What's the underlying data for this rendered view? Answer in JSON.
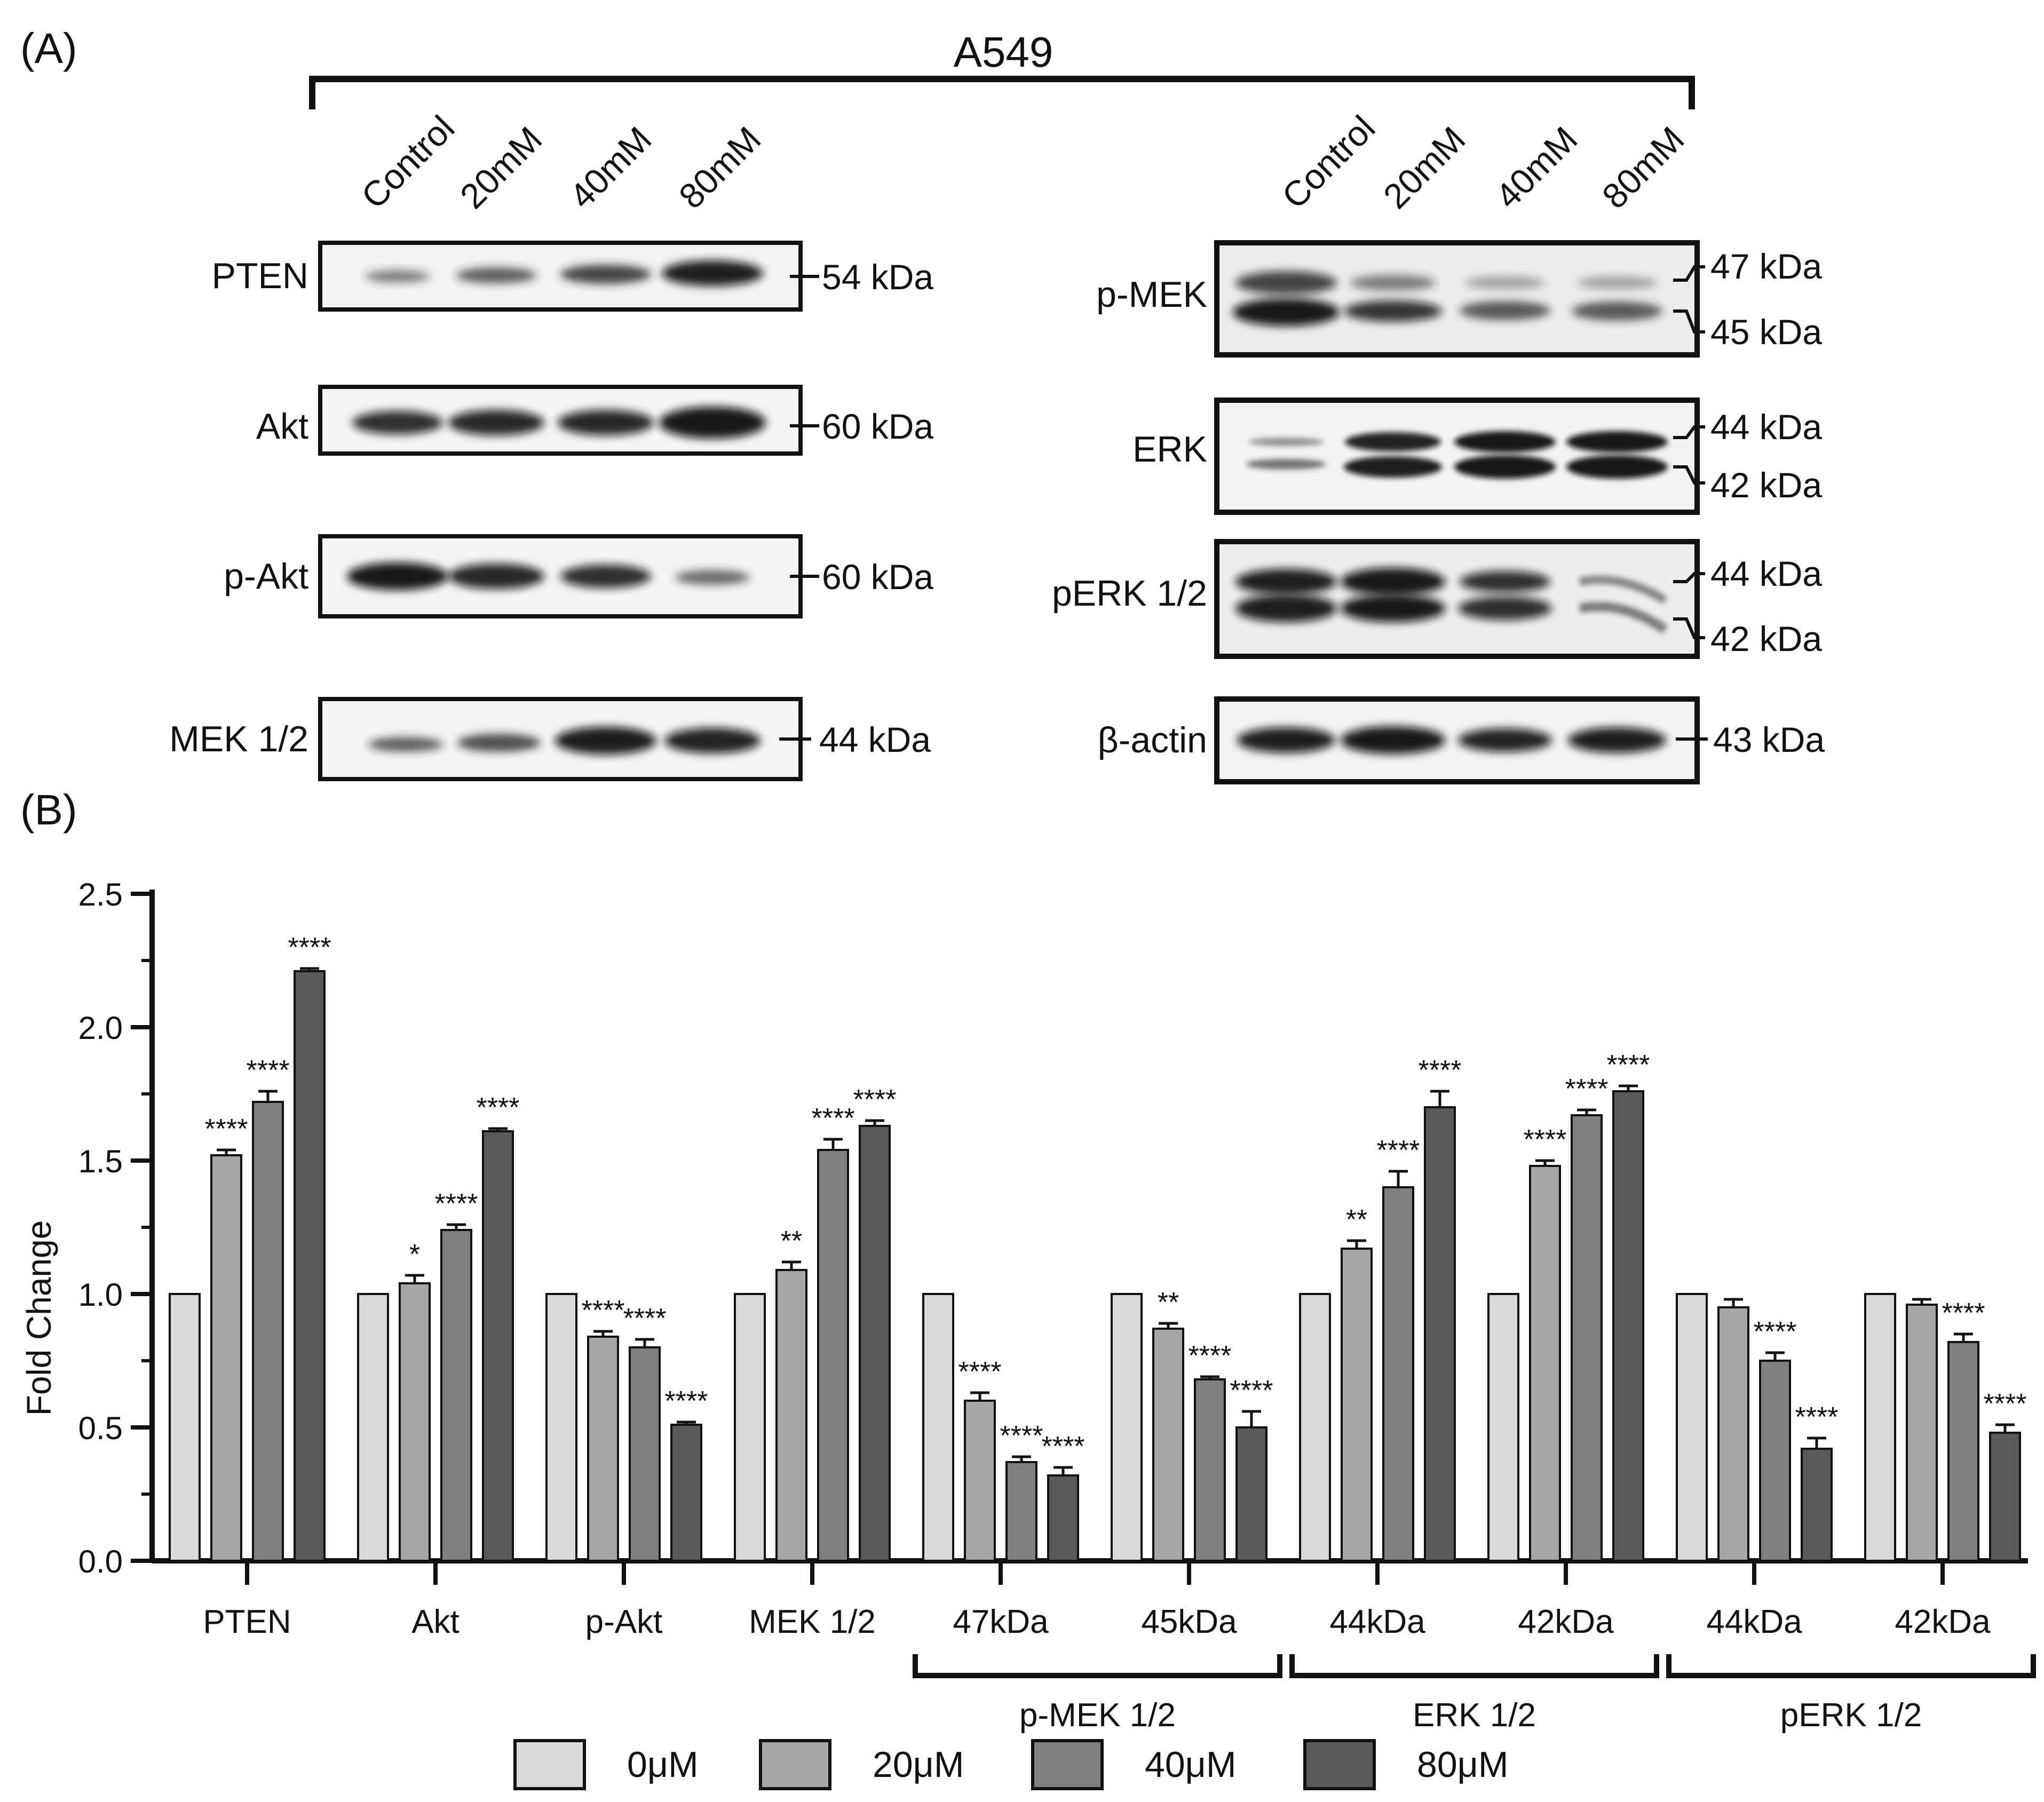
{
  "panel_a": {
    "label": "(A)",
    "cell_line": "A549",
    "lanes": [
      "Control",
      "20mM",
      "40mM",
      "80mM"
    ],
    "left_blots": [
      {
        "name": "PTEN",
        "kda": [
          "54 kDa"
        ],
        "intensity": [
          0.3,
          0.45,
          0.6,
          0.85
        ]
      },
      {
        "name": "Akt",
        "kda": [
          "60 kDa"
        ],
        "intensity": [
          0.75,
          0.8,
          0.8,
          0.95
        ]
      },
      {
        "name": "p-Akt",
        "kda": [
          "60 kDa"
        ],
        "intensity": [
          0.9,
          0.8,
          0.75,
          0.45
        ]
      },
      {
        "name": "MEK 1/2",
        "kda": [
          "44 kDa"
        ],
        "intensity": [
          0.55,
          0.65,
          0.9,
          0.85
        ]
      }
    ],
    "right_blots": [
      {
        "name": "p-MEK",
        "kda": [
          "47 kDa",
          "45 kDa"
        ],
        "bands": 2
      },
      {
        "name": "ERK",
        "kda": [
          "44 kDa",
          "42 kDa"
        ],
        "bands": 2
      },
      {
        "name": "pERK 1/2",
        "kda": [
          "44 kDa",
          "42 kDa"
        ],
        "bands": 2
      },
      {
        "name": "β-actin",
        "kda": [
          "43 kDa"
        ],
        "bands": 1
      }
    ]
  },
  "panel_b": {
    "label": "(B)"
  },
  "chart_data": {
    "type": "bar",
    "ylabel": "Fold Change",
    "ylim": [
      0,
      2.5
    ],
    "yticks": [
      "0.0",
      "0.5",
      "1.0",
      "1.5",
      "2.0",
      "2.5"
    ],
    "categories": [
      "PTEN",
      "Akt",
      "p-Akt",
      "MEK 1/2",
      "47kDa",
      "45kDa",
      "44kDa",
      "42kDa",
      "44kDa",
      "42kDa"
    ],
    "groups": [
      {
        "label": "p-MEK 1/2",
        "from": 4,
        "to": 5
      },
      {
        "label": "ERK 1/2",
        "from": 6,
        "to": 7
      },
      {
        "label": "pERK 1/2",
        "from": 8,
        "to": 9
      }
    ],
    "series": [
      {
        "name": "0μM",
        "color": "#d9d9d9",
        "values": [
          1,
          1,
          1,
          1,
          1,
          1,
          1,
          1,
          1,
          1
        ],
        "errors": [
          0,
          0,
          0,
          0,
          0,
          0,
          0,
          0,
          0,
          0
        ],
        "sig": [
          "",
          "",
          "",
          "",
          "",
          "",
          "",
          "",
          "",
          ""
        ]
      },
      {
        "name": "20μM",
        "color": "#a6a6a6",
        "values": [
          1.52,
          1.04,
          0.84,
          1.09,
          0.6,
          0.87,
          1.17,
          1.48,
          0.95,
          0.96
        ],
        "errors": [
          0.02,
          0.03,
          0.02,
          0.03,
          0.03,
          0.02,
          0.03,
          0.02,
          0.03,
          0.02
        ],
        "sig": [
          "****",
          "*",
          "****",
          "**",
          "****",
          "**",
          "**",
          "****",
          "",
          ""
        ]
      },
      {
        "name": "40μM",
        "color": "#808080",
        "values": [
          1.72,
          1.24,
          0.8,
          1.54,
          0.37,
          0.68,
          1.4,
          1.67,
          0.75,
          0.82
        ],
        "errors": [
          0.04,
          0.02,
          0.03,
          0.04,
          0.02,
          0.01,
          0.06,
          0.02,
          0.03,
          0.03
        ],
        "sig": [
          "****",
          "****",
          "****",
          "****",
          "****",
          "****",
          "****",
          "****",
          "****",
          "****"
        ]
      },
      {
        "name": "80μM",
        "color": "#595959",
        "values": [
          2.21,
          1.61,
          0.51,
          1.63,
          0.32,
          0.5,
          1.7,
          1.76,
          0.42,
          0.48
        ],
        "errors": [
          0.01,
          0.01,
          0.01,
          0.02,
          0.03,
          0.06,
          0.06,
          0.02,
          0.04,
          0.03
        ],
        "sig": [
          "****",
          "****",
          "****",
          "****",
          "****",
          "****",
          "****",
          "****",
          "****",
          "****"
        ]
      }
    ],
    "legend": {
      "position": "bottom",
      "labels": [
        "0μM",
        "20μM",
        "40μM",
        "80μM"
      ]
    }
  }
}
